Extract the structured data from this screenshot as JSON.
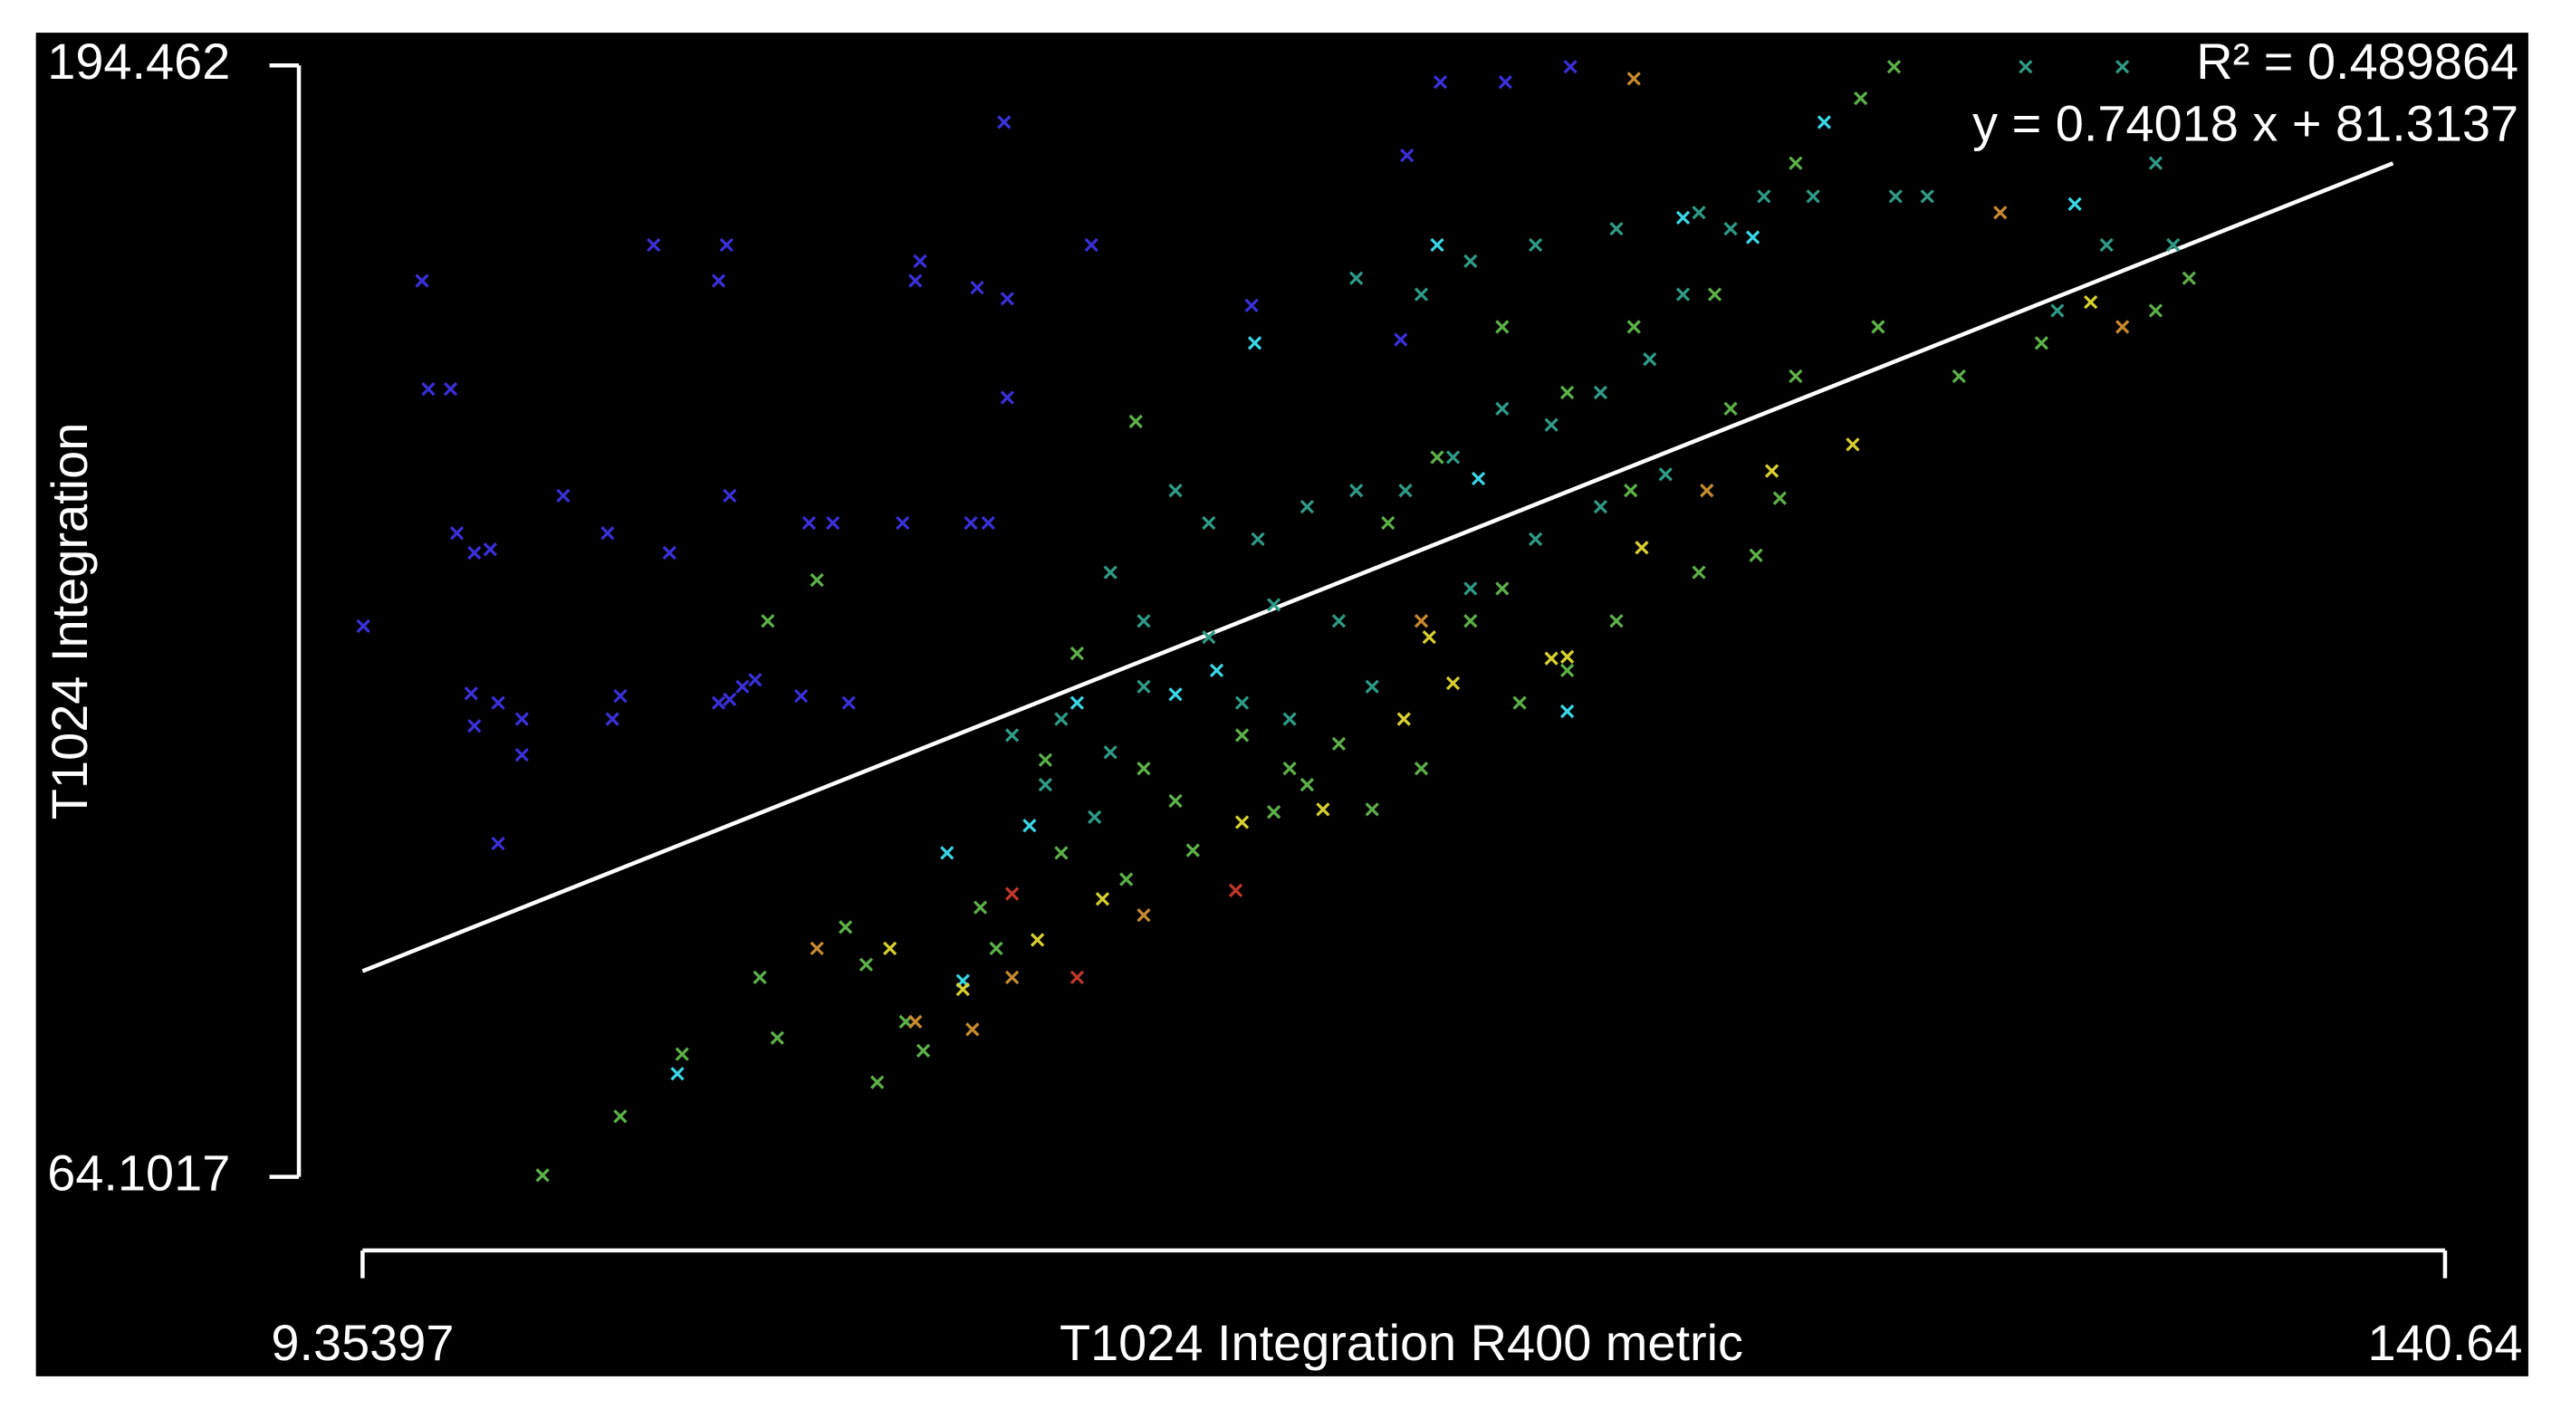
{
  "chart_data": {
    "type": "scatter",
    "x_label": "T1024 Integration R400 metric",
    "y_label": "T1024 Integration",
    "annotations": [
      "R² = 0.489864",
      "y = 0.74018 x + 81.3137"
    ],
    "xlim": [
      9.35397,
      140.64
    ],
    "ylim": [
      64.1017,
      194.462
    ],
    "xticks": [
      9.35397,
      140.64
    ],
    "yticks": [
      64.1017,
      194.462
    ],
    "trendline": {
      "slope": 0.74018,
      "intercept": 81.3137,
      "color": "#ffffff"
    },
    "series": [
      {
        "color": "#3a30d8",
        "x": [
          9.4,
          13.1,
          13.5,
          14.9,
          15.3,
          16.4,
          17.4,
          16.2,
          16.4,
          17.9,
          19.4,
          19.4,
          17.9,
          22.0,
          24.8,
          25.6,
          25.1,
          27.7,
          28.7,
          31.8,
          32.3,
          32.5,
          31.8,
          32.5,
          33.3,
          34.1,
          37.0,
          37.5,
          39.0,
          40.0,
          43.4,
          44.2,
          44.5,
          47.7,
          48.8,
          48.1,
          49.8,
          50.0,
          50.0,
          55.3,
          65.4,
          74.8,
          75.2,
          77.3,
          81.4,
          85.5
        ],
        "values": [
          128.7,
          169.2,
          156.5,
          156.5,
          139.6,
          137.3,
          137.7,
          120.8,
          117.0,
          119.7,
          117.8,
          113.6,
          103.2,
          144.0,
          139.6,
          120.5,
          117.8,
          173.4,
          137.3,
          169.2,
          173.4,
          144.0,
          119.7,
          120.1,
          121.6,
          122.4,
          120.5,
          140.8,
          140.8,
          119.7,
          140.8,
          169.2,
          171.5,
          140.8,
          140.8,
          168.4,
          187.8,
          167.1,
          155.5,
          173.4,
          166.3,
          162.3,
          183.9,
          192.5,
          192.5,
          194.3
        ]
      },
      {
        "color": "#2f9a86",
        "x": [
          50.3,
          53.4,
          56.5,
          58.6,
          60.6,
          62.7,
          65.8,
          68.9,
          72.0,
          75.1,
          78.1,
          81.2,
          84.3,
          87.4,
          90.5,
          92.6,
          95.6,
          97.7,
          100.8,
          106.0,
          108.0,
          114.2,
          120.3,
          122.4,
          119.3,
          116.2,
          123.5,
          56.5,
          58.6,
          62.7,
          66.8,
          70.9,
          79.2,
          83.3,
          87.4,
          91.5,
          72.0,
          76.1,
          79.2,
          83.3,
          88.4,
          93.6,
          52.4,
          55.5,
          64.8,
          67.8,
          73.0
        ],
        "values": [
          115.9,
          117.8,
          113.9,
          121.6,
          144.6,
          140.8,
          138.9,
          142.7,
          144.6,
          144.6,
          148.5,
          154.2,
          152.3,
          156.1,
          160.0,
          167.6,
          175.3,
          179.1,
          179.1,
          179.1,
          179.1,
          194.3,
          194.3,
          183.0,
          173.4,
          165.7,
          173.4,
          135.0,
          129.3,
          127.4,
          131.2,
          129.3,
          133.1,
          138.9,
          142.7,
          146.5,
          169.5,
          167.6,
          171.5,
          173.4,
          175.3,
          177.2,
          110.1,
          106.3,
          119.7,
          117.8,
          121.6
        ]
      },
      {
        "color": "#5cb048",
        "x": [
          20.7,
          25.6,
          29.5,
          34.4,
          35.5,
          39.8,
          41.8,
          44.7,
          43.6,
          41.1,
          48.3,
          49.3,
          53.4,
          57.5,
          61.7,
          66.8,
          68.9,
          70.9,
          79.2,
          81.2,
          89.3,
          95.6,
          99.7,
          104.9,
          110.0,
          115.2,
          122.4,
          124.5,
          98.7,
          97.2,
          93.6,
          88.4,
          85.3,
          82.3,
          76.1,
          73.0,
          67.8,
          64.8,
          60.6,
          58.6,
          54.4,
          52.4,
          34.9,
          38.0,
          58.1,
          85.3,
          89.5,
          94.6,
          99.7,
          103.8,
          105.9,
          81.2,
          77.1,
          74.0
        ],
        "values": [
          64.3,
          71.2,
          78.5,
          87.5,
          80.4,
          93.4,
          75.2,
          78.9,
          82.3,
          89.0,
          95.7,
          90.9,
          102.1,
          99.0,
          102.4,
          106.9,
          110.1,
          114.9,
          129.3,
          133.1,
          144.6,
          154.2,
          158.0,
          163.8,
          158.0,
          161.9,
          165.7,
          169.5,
          143.7,
          137.0,
          135.0,
          129.3,
          123.5,
          119.7,
          112.0,
          107.2,
          112.0,
          115.9,
          108.2,
          112.0,
          125.5,
          113.0,
          129.3,
          134.1,
          152.7,
          156.1,
          163.8,
          167.6,
          183.0,
          190.6,
          194.3,
          163.8,
          148.5,
          140.8
        ]
      },
      {
        "color": "#3ad6e6",
        "x": [
          29.2,
          46.2,
          47.2,
          51.4,
          63.2,
          65.6,
          77.1,
          79.7,
          92.6,
          97.0,
          117.3,
          101.5,
          85.3,
          60.6,
          54.4
        ],
        "values": [
          76.2,
          102.1,
          87.1,
          105.3,
          123.5,
          161.9,
          173.4,
          146.0,
          176.6,
          174.3,
          178.2,
          187.8,
          118.7,
          120.7,
          119.7
        ]
      },
      {
        "color": "#d8d030",
        "x": [
          51.9,
          56.0,
          64.8,
          98.2,
          84.3,
          85.3,
          42.6,
          47.2,
          118.3,
          76.6,
          78.1,
          90.0,
          103.3,
          75.0,
          69.9
        ],
        "values": [
          91.9,
          96.7,
          105.7,
          146.9,
          124.9,
          125.1,
          90.9,
          86.1,
          166.7,
          127.4,
          122.0,
          137.9,
          150.0,
          117.8,
          107.2
        ]
      },
      {
        "color": "#c88a30",
        "x": [
          38.0,
          44.2,
          47.8,
          58.6,
          89.5,
          94.1,
          76.1,
          112.6,
          120.3,
          50.3
        ],
        "values": [
          90.9,
          82.3,
          81.4,
          94.8,
          192.9,
          144.6,
          129.3,
          177.2,
          163.8,
          87.5
        ]
      },
      {
        "color": "#c03828",
        "x": [
          50.3,
          54.4,
          64.4
        ],
        "values": [
          97.3,
          87.5,
          97.7
        ]
      }
    ]
  }
}
